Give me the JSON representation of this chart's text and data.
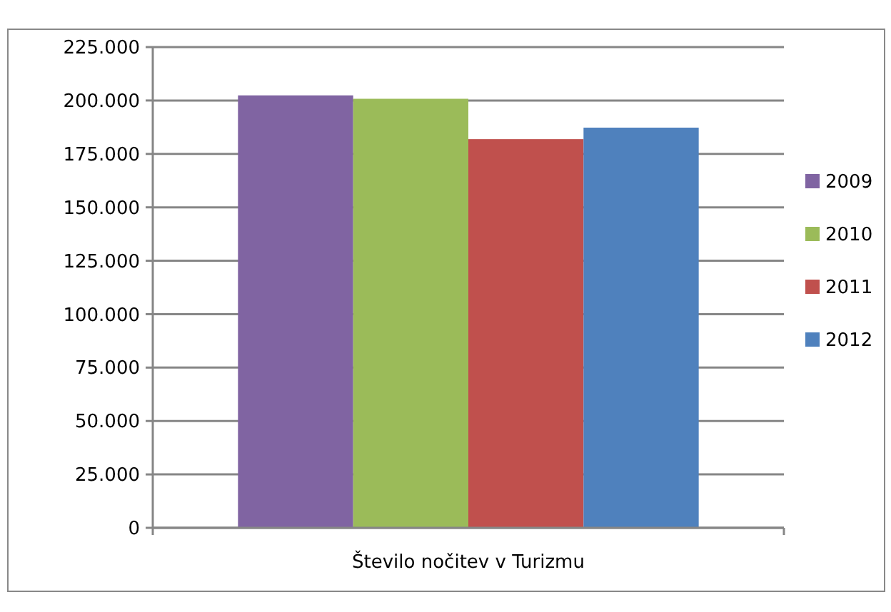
{
  "chart_data": {
    "type": "bar",
    "categories": [
      "Število nočitev v Turizmu"
    ],
    "series": [
      {
        "name": "2009",
        "color": "#8064a2",
        "values": [
          202400
        ]
      },
      {
        "name": "2010",
        "color": "#9bbb59",
        "values": [
          200800
        ]
      },
      {
        "name": "2011",
        "color": "#c0504d",
        "values": [
          181900
        ]
      },
      {
        "name": "2012",
        "color": "#4f81bd",
        "values": [
          187300
        ]
      }
    ],
    "ylim": [
      0,
      225000
    ],
    "yticks": [
      {
        "value": 0,
        "label": "0"
      },
      {
        "value": 25000,
        "label": "25.000"
      },
      {
        "value": 50000,
        "label": "50.000"
      },
      {
        "value": 75000,
        "label": "75.000"
      },
      {
        "value": 100000,
        "label": "100.000"
      },
      {
        "value": 125000,
        "label": "125.000"
      },
      {
        "value": 150000,
        "label": "150.000"
      },
      {
        "value": 175000,
        "label": "175.000"
      },
      {
        "value": 200000,
        "label": "200.000"
      },
      {
        "value": 225000,
        "label": "225.000"
      }
    ],
    "grid": "y",
    "legend": "right"
  }
}
